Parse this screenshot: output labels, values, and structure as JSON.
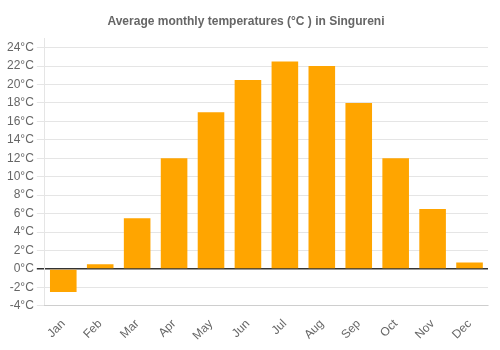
{
  "chart_data": {
    "type": "bar",
    "title": "Average monthly temperatures (°C ) in Singureni",
    "categories": [
      "Jan",
      "Feb",
      "Mar",
      "Apr",
      "May",
      "Jun",
      "Jul",
      "Aug",
      "Sep",
      "Oct",
      "Nov",
      "Dec"
    ],
    "values": [
      -2.5,
      0.5,
      5.5,
      12.0,
      17.0,
      20.5,
      22.5,
      22.0,
      18.0,
      12.0,
      6.5,
      0.7
    ],
    "color": "#FFA500",
    "ylim": [
      -4,
      25
    ],
    "yticks": [
      {
        "value": -4,
        "label": "-4°C"
      },
      {
        "value": -2,
        "label": "-2°C"
      },
      {
        "value": 0,
        "label": "0°C"
      },
      {
        "value": 2,
        "label": "2°C"
      },
      {
        "value": 4,
        "label": "4°C"
      },
      {
        "value": 6,
        "label": "6°C"
      },
      {
        "value": 8,
        "label": "8°C"
      },
      {
        "value": 10,
        "label": "10°C"
      },
      {
        "value": 12,
        "label": "12°C"
      },
      {
        "value": 14,
        "label": "14°C"
      },
      {
        "value": 16,
        "label": "16°C"
      },
      {
        "value": 18,
        "label": "18°C"
      },
      {
        "value": 20,
        "label": "20°C"
      },
      {
        "value": 22,
        "label": "22°C"
      },
      {
        "value": 24,
        "label": "24°C"
      }
    ],
    "grid": true
  }
}
